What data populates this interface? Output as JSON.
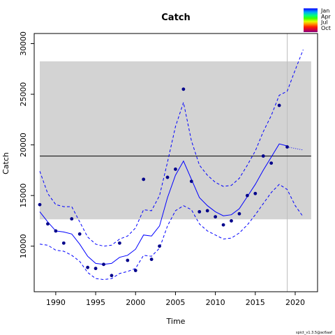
{
  "chart_data": {
    "type": "line",
    "title": "Catch",
    "xlabel": "Time",
    "ylabel": "Catch",
    "xlim": [
      1987.3,
      2022.8
    ],
    "ylim": [
      5500,
      31000
    ],
    "x_ticks": [
      1990,
      1995,
      2000,
      2005,
      2010,
      2015,
      2020
    ],
    "y_ticks": [
      10000,
      15000,
      20000,
      25000,
      30000
    ],
    "grid": false,
    "colors": {
      "band": "#d3d3d3",
      "line": "#0000ff",
      "points": "#00008b",
      "mean_line": "#000000",
      "vline": "#bebebe"
    },
    "shaded_band": {
      "x": [
        1988,
        2022
      ],
      "y": [
        12650,
        28250
      ]
    },
    "reference_line_y": 18900,
    "vertical_line_x": 2019,
    "observed_catch": {
      "x": [
        1988,
        1989,
        1990,
        1991,
        1992,
        1993,
        1994,
        1995,
        1996,
        1997,
        1998,
        1999,
        2000,
        2001,
        2002,
        2003,
        2004,
        2005,
        2006,
        2007,
        2008,
        2009,
        2010,
        2011,
        2012,
        2013,
        2014,
        2015,
        2016,
        2017,
        2018,
        2019
      ],
      "y": [
        14100,
        12200,
        11500,
        10300,
        12700,
        11200,
        7900,
        7800,
        8200,
        7100,
        10300,
        8600,
        7600,
        16600,
        8700,
        10000,
        16800,
        17600,
        25500,
        16400,
        13400,
        13500,
        12900,
        12100,
        12500,
        13200,
        15000,
        15200,
        18900,
        18200,
        23900,
        19800
      ]
    },
    "predicted": {
      "x": [
        1988,
        1989,
        1990,
        1991,
        1992,
        1993,
        1994,
        1995,
        1996,
        1997,
        1998,
        1999,
        2000,
        2001,
        2002,
        2003,
        2004,
        2005,
        2006,
        2007,
        2008,
        2009,
        2010,
        2011,
        2012,
        2013,
        2014,
        2015,
        2016,
        2017,
        2018,
        2019
      ],
      "y": [
        13400,
        12400,
        11500,
        11400,
        11200,
        10200,
        9000,
        8300,
        8200,
        8300,
        8900,
        9100,
        9700,
        11100,
        11000,
        12000,
        14800,
        17000,
        18400,
        16600,
        14800,
        14000,
        13400,
        13000,
        13100,
        13700,
        14900,
        16100,
        17500,
        18800,
        20100,
        19900
      ]
    },
    "lower_ci": {
      "x": [
        1988,
        1989,
        1990,
        1991,
        1992,
        1993,
        1994,
        1995,
        1996,
        1997,
        1998,
        1999,
        2000,
        2001,
        2002,
        2003,
        2004,
        2005,
        2006,
        2007,
        2008,
        2009,
        2010,
        2011,
        2012,
        2013,
        2014,
        2015,
        2016,
        2017,
        2018,
        2019,
        2020,
        2021
      ],
      "y": [
        10200,
        10100,
        9600,
        9500,
        9100,
        8500,
        7400,
        6800,
        6700,
        6800,
        7300,
        7500,
        7800,
        9100,
        9000,
        9800,
        12000,
        13500,
        14000,
        13600,
        12200,
        11500,
        11100,
        10700,
        10800,
        11300,
        12100,
        13100,
        14200,
        15300,
        16100,
        15600,
        14000,
        12900
      ]
    },
    "upper_ci": {
      "x": [
        1988,
        1989,
        1990,
        1991,
        1992,
        1993,
        1994,
        1995,
        1996,
        1997,
        1998,
        1999,
        2000,
        2001,
        2002,
        2003,
        2004,
        2005,
        2006,
        2007,
        2008,
        2009,
        2010,
        2011,
        2012,
        2013,
        2014,
        2015,
        2016,
        2017,
        2018,
        2019,
        2020,
        2021
      ],
      "y": [
        17400,
        15200,
        14100,
        13900,
        13900,
        12400,
        10900,
        10200,
        10000,
        10100,
        10700,
        11000,
        11800,
        13600,
        13500,
        15000,
        18300,
        21800,
        24200,
        20400,
        18000,
        17000,
        16300,
        15900,
        16000,
        16700,
        18000,
        19400,
        21300,
        22900,
        24900,
        25300,
        27400,
        29400
      ]
    },
    "forecast": {
      "x": [
        2019,
        2021
      ],
      "y": [
        19800,
        19500
      ]
    },
    "legend": {
      "placement": "top-right",
      "entries": [
        "Jan",
        "Apr",
        "Jul",
        "Oct"
      ]
    },
    "footnote": "spict_v1.3.5@ac6aaf"
  }
}
